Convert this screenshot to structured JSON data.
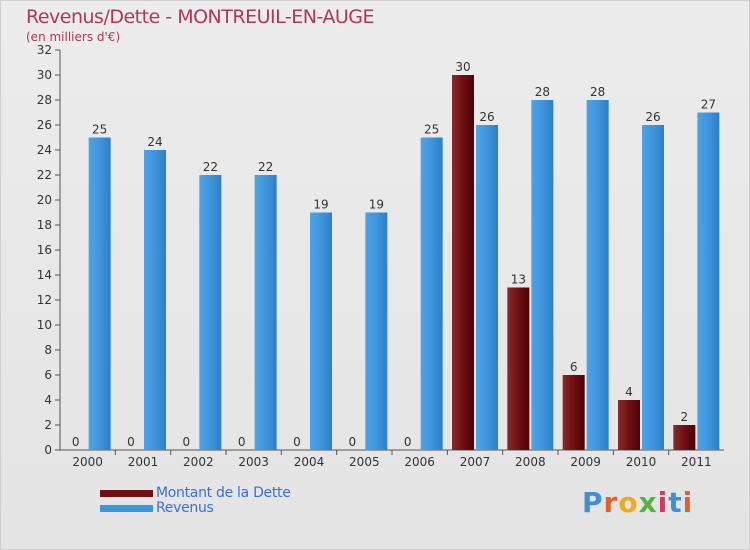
{
  "header": {
    "title": "Revenus/Dette - MONTREUIL-EN-AUGE",
    "subtitle": "(en milliers d'€)"
  },
  "logo": {
    "letters": [
      "P",
      "r",
      "o",
      "x",
      "i",
      "t",
      "i"
    ]
  },
  "colors": {
    "dette": "#6e0f12",
    "revenus": "#3f95dc",
    "title": "#b5355a",
    "legend_text": "#3b6fd4"
  },
  "chart_data": {
    "type": "bar",
    "title": "Revenus/Dette - MONTREUIL-EN-AUGE",
    "subtitle": "(en milliers d'€)",
    "xlabel": "",
    "ylabel": "",
    "ylim": [
      0,
      32
    ],
    "yticks": [
      0,
      2,
      4,
      6,
      8,
      10,
      12,
      14,
      16,
      18,
      20,
      22,
      24,
      26,
      28,
      30,
      32
    ],
    "grid": false,
    "legend_position": "bottom-left",
    "categories": [
      "2000",
      "2001",
      "2002",
      "2003",
      "2004",
      "2005",
      "2006",
      "2007",
      "2008",
      "2009",
      "2010",
      "2011"
    ],
    "series": [
      {
        "name": "Montant de la Dette",
        "color": "#6e0f12",
        "values": [
          0,
          0,
          0,
          0,
          0,
          0,
          0,
          30,
          13,
          6,
          4,
          2
        ]
      },
      {
        "name": "Revenus",
        "color": "#3f95dc",
        "values": [
          25,
          24,
          22,
          22,
          19,
          19,
          25,
          26,
          28,
          28,
          26,
          27
        ]
      }
    ]
  }
}
